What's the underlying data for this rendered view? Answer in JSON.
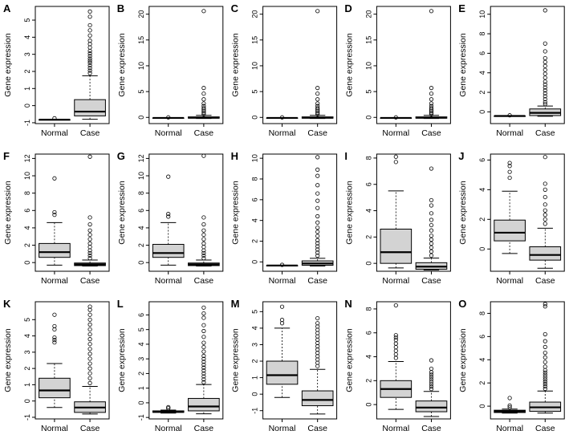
{
  "figure": {
    "ylabel": "Gene expression",
    "colors": {
      "box_fill": "#d3d3d3",
      "stroke": "#000000"
    }
  },
  "chart_data": [
    {
      "panel": "A",
      "type": "boxplot",
      "categories": [
        "Normal",
        "Case"
      ],
      "ylabel": "Gene expression",
      "ylim": [
        -1.05,
        5.8
      ],
      "yticks": [
        -1,
        0,
        1,
        2,
        3,
        4,
        5
      ],
      "boxes": [
        {
          "group": "Normal",
          "min": -0.82,
          "q1": -0.82,
          "median": -0.82,
          "q3": -0.82,
          "max": -0.82,
          "outliers": [
            -0.74
          ]
        },
        {
          "group": "Case",
          "min": -0.8,
          "q1": -0.6,
          "median": -0.35,
          "q3": 0.35,
          "max": 1.75,
          "outliers": [
            1.9,
            2.05,
            2.2,
            2.35,
            2.5,
            2.62,
            2.75,
            2.9,
            3.05,
            3.2,
            3.4,
            3.6,
            3.8,
            4.1,
            4.4,
            4.7,
            5.2,
            5.5
          ]
        }
      ]
    },
    {
      "panel": "B",
      "type": "boxplot",
      "categories": [
        "Normal",
        "Case"
      ],
      "ylabel": "Gene expression",
      "ylim": [
        -1.2,
        21.5
      ],
      "yticks": [
        0,
        5,
        10,
        15,
        20
      ],
      "boxes": [
        {
          "group": "Normal",
          "min": -0.1,
          "q1": -0.1,
          "median": -0.1,
          "q3": -0.1,
          "max": -0.1,
          "outliers": [
            0.0
          ]
        },
        {
          "group": "Case",
          "min": -0.2,
          "q1": -0.15,
          "median": -0.05,
          "q3": 0.1,
          "max": 0.4,
          "outliers": [
            0.6,
            0.9,
            1.2,
            1.5,
            1.8,
            2.2,
            2.7,
            3.5,
            4.6,
            5.7,
            20.6
          ]
        }
      ]
    },
    {
      "panel": "C",
      "type": "boxplot",
      "categories": [
        "Normal",
        "Case"
      ],
      "ylabel": "Gene expression",
      "ylim": [
        -1.2,
        21.5
      ],
      "yticks": [
        0,
        5,
        10,
        15,
        20
      ],
      "boxes": [
        {
          "group": "Normal",
          "min": -0.1,
          "q1": -0.1,
          "median": -0.1,
          "q3": -0.1,
          "max": -0.1,
          "outliers": [
            0.0
          ]
        },
        {
          "group": "Case",
          "min": -0.2,
          "q1": -0.15,
          "median": -0.05,
          "q3": 0.1,
          "max": 0.4,
          "outliers": [
            0.6,
            0.9,
            1.2,
            1.5,
            1.8,
            2.2,
            2.7,
            3.5,
            4.6,
            5.7,
            20.6
          ]
        }
      ]
    },
    {
      "panel": "D",
      "type": "boxplot",
      "categories": [
        "Normal",
        "Case"
      ],
      "ylabel": "Gene expression",
      "ylim": [
        -1.2,
        21.5
      ],
      "yticks": [
        0,
        5,
        10,
        15,
        20
      ],
      "boxes": [
        {
          "group": "Normal",
          "min": -0.1,
          "q1": -0.1,
          "median": -0.1,
          "q3": -0.1,
          "max": -0.1,
          "outliers": [
            0.0
          ]
        },
        {
          "group": "Case",
          "min": -0.2,
          "q1": -0.15,
          "median": -0.05,
          "q3": 0.1,
          "max": 0.4,
          "outliers": [
            0.6,
            0.9,
            1.2,
            1.5,
            1.8,
            2.2,
            2.7,
            3.5,
            4.6,
            5.7,
            20.6
          ]
        }
      ]
    },
    {
      "panel": "E",
      "type": "boxplot",
      "categories": [
        "Normal",
        "Case"
      ],
      "ylabel": "Gene expression",
      "ylim": [
        -1.2,
        10.8
      ],
      "yticks": [
        0,
        2,
        4,
        6,
        8,
        10
      ],
      "boxes": [
        {
          "group": "Normal",
          "min": -0.42,
          "q1": -0.42,
          "median": -0.42,
          "q3": -0.42,
          "max": -0.42,
          "outliers": [
            -0.35
          ]
        },
        {
          "group": "Case",
          "min": -0.45,
          "q1": -0.38,
          "median": -0.1,
          "q3": 0.3,
          "max": 0.6,
          "outliers": [
            0.8,
            1.0,
            1.3,
            1.6,
            1.9,
            2.2,
            2.5,
            2.8,
            3.1,
            3.5,
            3.9,
            4.3,
            4.7,
            5.1,
            5.5,
            6.2,
            7.0,
            10.4
          ]
        }
      ]
    },
    {
      "panel": "F",
      "type": "boxplot",
      "categories": [
        "Normal",
        "Case"
      ],
      "ylabel": "Gene expression",
      "ylim": [
        -1.0,
        12.5
      ],
      "yticks": [
        0,
        2,
        4,
        6,
        8,
        10,
        12
      ],
      "boxes": [
        {
          "group": "Normal",
          "min": -0.3,
          "q1": 0.6,
          "median": 1.2,
          "q3": 2.2,
          "max": 4.6,
          "outliers": [
            5.5,
            5.8,
            9.7
          ]
        },
        {
          "group": "Case",
          "min": -0.4,
          "q1": -0.35,
          "median": -0.2,
          "q3": -0.05,
          "max": 0.3,
          "outliers": [
            0.5,
            0.8,
            1.1,
            1.4,
            1.8,
            2.2,
            2.7,
            3.2,
            3.7,
            4.4,
            5.2,
            12.2
          ]
        }
      ]
    },
    {
      "panel": "G",
      "type": "boxplot",
      "categories": [
        "Normal",
        "Case"
      ],
      "ylabel": "Gene expression",
      "ylim": [
        -1.0,
        12.5
      ],
      "yticks": [
        0,
        2,
        4,
        6,
        8,
        10,
        12
      ],
      "boxes": [
        {
          "group": "Normal",
          "min": -0.3,
          "q1": 0.6,
          "median": 1.1,
          "q3": 2.1,
          "max": 4.6,
          "outliers": [
            5.3,
            5.6,
            9.9
          ]
        },
        {
          "group": "Case",
          "min": -0.4,
          "q1": -0.35,
          "median": -0.2,
          "q3": -0.05,
          "max": 0.3,
          "outliers": [
            0.5,
            0.8,
            1.1,
            1.4,
            1.8,
            2.2,
            2.7,
            3.2,
            3.7,
            4.4,
            5.2,
            12.3
          ]
        }
      ]
    },
    {
      "panel": "H",
      "type": "boxplot",
      "categories": [
        "Normal",
        "Case"
      ],
      "ylabel": "Gene expression",
      "ylim": [
        -0.9,
        10.4
      ],
      "yticks": [
        0,
        2,
        4,
        6,
        8,
        10
      ],
      "boxes": [
        {
          "group": "Normal",
          "min": -0.35,
          "q1": -0.35,
          "median": -0.35,
          "q3": -0.35,
          "max": -0.35,
          "outliers": [
            -0.28
          ]
        },
        {
          "group": "Case",
          "min": -0.4,
          "q1": -0.32,
          "median": -0.15,
          "q3": 0.1,
          "max": 0.35,
          "outliers": [
            0.6,
            0.9,
            1.2,
            1.5,
            1.8,
            2.1,
            2.5,
            2.9,
            3.3,
            3.8,
            4.4,
            5.2,
            5.9,
            6.6,
            7.4,
            8.3,
            8.9,
            10.1
          ]
        }
      ]
    },
    {
      "panel": "I",
      "type": "boxplot",
      "categories": [
        "Normal",
        "Case"
      ],
      "ylabel": "Gene expression",
      "ylim": [
        -0.6,
        8.3
      ],
      "yticks": [
        0,
        2,
        4,
        6,
        8
      ],
      "boxes": [
        {
          "group": "Normal",
          "min": -0.35,
          "q1": 0.0,
          "median": 0.85,
          "q3": 2.6,
          "max": 5.5,
          "outliers": [
            7.7,
            8.1
          ]
        },
        {
          "group": "Case",
          "min": -0.5,
          "q1": -0.45,
          "median": -0.25,
          "q3": 0.05,
          "max": 0.4,
          "outliers": [
            0.6,
            0.9,
            1.2,
            1.5,
            1.8,
            2.1,
            2.5,
            2.9,
            3.3,
            3.8,
            4.4,
            4.8,
            7.2
          ]
        }
      ]
    },
    {
      "panel": "J",
      "type": "boxplot",
      "categories": [
        "Normal",
        "Case"
      ],
      "ylabel": "Gene expression",
      "ylim": [
        -1.5,
        6.4
      ],
      "yticks": [
        0,
        2,
        4,
        6
      ],
      "boxes": [
        {
          "group": "Normal",
          "min": -0.3,
          "q1": 0.55,
          "median": 1.1,
          "q3": 1.95,
          "max": 3.9,
          "outliers": [
            4.8,
            5.2,
            5.6,
            5.8
          ]
        },
        {
          "group": "Case",
          "min": -1.3,
          "q1": -0.75,
          "median": -0.4,
          "q3": 0.15,
          "max": 1.4,
          "outliers": [
            1.7,
            2.0,
            2.3,
            2.6,
            3.0,
            3.5,
            4.0,
            4.4,
            6.2
          ]
        }
      ]
    },
    {
      "panel": "K",
      "type": "boxplot",
      "categories": [
        "Normal",
        "Case"
      ],
      "ylabel": "Gene expression",
      "ylim": [
        -1.1,
        6.1
      ],
      "yticks": [
        -1,
        0,
        1,
        2,
        3,
        4,
        5
      ],
      "boxes": [
        {
          "group": "Normal",
          "min": -0.4,
          "q1": 0.2,
          "median": 0.65,
          "q3": 1.4,
          "max": 2.3,
          "outliers": [
            3.6,
            3.75,
            3.9,
            4.4,
            4.6,
            5.3
          ]
        },
        {
          "group": "Case",
          "min": -0.8,
          "q1": -0.7,
          "median": -0.4,
          "q3": -0.05,
          "max": 0.9,
          "outliers": [
            1.1,
            1.4,
            1.7,
            2.0,
            2.3,
            2.6,
            2.9,
            3.2,
            3.5,
            3.8,
            4.1,
            4.4,
            4.7,
            5.0,
            5.3,
            5.6,
            5.8
          ]
        }
      ]
    },
    {
      "panel": "L",
      "type": "boxplot",
      "categories": [
        "Normal",
        "Case"
      ],
      "ylabel": "Gene expression",
      "ylim": [
        -1.1,
        6.9
      ],
      "yticks": [
        -1,
        0,
        1,
        2,
        3,
        4,
        5,
        6
      ],
      "boxes": [
        {
          "group": "Normal",
          "min": -0.7,
          "q1": -0.65,
          "median": -0.62,
          "q3": -0.55,
          "max": -0.5,
          "outliers": [
            -0.38,
            -0.3
          ]
        },
        {
          "group": "Case",
          "min": -0.75,
          "q1": -0.55,
          "median": -0.25,
          "q3": 0.3,
          "max": 1.25,
          "outliers": [
            1.4,
            1.6,
            1.8,
            2.0,
            2.2,
            2.4,
            2.6,
            2.8,
            3.0,
            3.2,
            3.5,
            3.8,
            4.1,
            4.5,
            4.9,
            5.3,
            5.8,
            6.1,
            6.5
          ]
        }
      ]
    },
    {
      "panel": "M",
      "type": "boxplot",
      "categories": [
        "Normal",
        "Case"
      ],
      "ylabel": "Gene expression",
      "ylim": [
        -1.5,
        5.6
      ],
      "yticks": [
        -1,
        0,
        1,
        2,
        3,
        4,
        5
      ],
      "boxes": [
        {
          "group": "Normal",
          "min": -0.2,
          "q1": 0.6,
          "median": 1.15,
          "q3": 2.0,
          "max": 4.0,
          "outliers": [
            4.3,
            4.5,
            5.3
          ]
        },
        {
          "group": "Case",
          "min": -1.2,
          "q1": -0.7,
          "median": -0.35,
          "q3": 0.2,
          "max": 1.5,
          "outliers": [
            1.7,
            1.9,
            2.1,
            2.3,
            2.5,
            2.7,
            2.9,
            3.1,
            3.3,
            3.5,
            3.7,
            3.9,
            4.1,
            4.3,
            4.6
          ]
        }
      ]
    },
    {
      "panel": "N",
      "type": "boxplot",
      "categories": [
        "Normal",
        "Case"
      ],
      "ylabel": "Gene expression",
      "ylim": [
        -1.2,
        8.6
      ],
      "yticks": [
        0,
        2,
        4,
        6,
        8
      ],
      "boxes": [
        {
          "group": "Normal",
          "min": -0.4,
          "q1": 0.6,
          "median": 1.3,
          "q3": 2.0,
          "max": 3.6,
          "outliers": [
            3.9,
            4.2,
            4.5,
            4.8,
            5.1,
            5.4,
            5.6,
            5.8,
            8.3
          ]
        },
        {
          "group": "Case",
          "min": -1.0,
          "q1": -0.6,
          "median": -0.25,
          "q3": 0.3,
          "max": 1.1,
          "outliers": [
            1.3,
            1.5,
            1.7,
            1.9,
            2.1,
            2.3,
            2.5,
            2.7,
            3.0,
            3.7
          ]
        }
      ]
    },
    {
      "panel": "O",
      "type": "boxplot",
      "categories": [
        "Normal",
        "Case"
      ],
      "ylabel": "Gene expression",
      "ylim": [
        -1.1,
        9.0
      ],
      "yticks": [
        0,
        2,
        4,
        6,
        8
      ],
      "boxes": [
        {
          "group": "Normal",
          "min": -0.6,
          "q1": -0.55,
          "median": -0.45,
          "q3": -0.35,
          "max": -0.25,
          "outliers": [
            -0.1,
            0.05,
            0.7
          ]
        },
        {
          "group": "Case",
          "min": -0.6,
          "q1": -0.45,
          "median": -0.1,
          "q3": 0.35,
          "max": 1.3,
          "outliers": [
            1.5,
            1.7,
            1.9,
            2.1,
            2.3,
            2.5,
            2.7,
            2.9,
            3.1,
            3.4,
            3.8,
            4.2,
            4.6,
            5.1,
            5.6,
            6.2,
            8.6,
            8.8
          ]
        }
      ]
    }
  ]
}
